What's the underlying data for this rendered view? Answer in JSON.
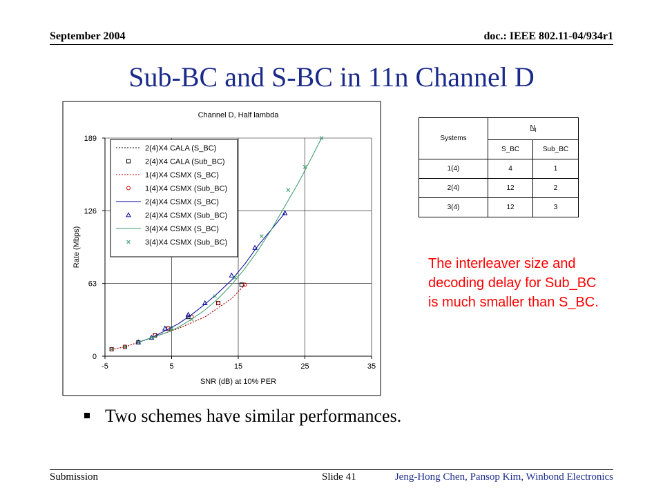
{
  "header": {
    "date": "September 2004",
    "doc": "doc.: IEEE 802.11-04/934r1"
  },
  "title": "Sub-BC and S-BC in 11n Channel D",
  "chart_data": {
    "type": "line",
    "title": "Channel D, Half lambda",
    "xlabel": "SNR (dB) at 10% PER",
    "ylabel": "Rate (Mbps)",
    "xlim": [
      -5,
      35
    ],
    "ylim": [
      0,
      189
    ],
    "xticks": [
      "-5",
      "5",
      "15",
      "25",
      "35"
    ],
    "yticks": [
      "0",
      "63",
      "126",
      "189"
    ],
    "legend_position": "top-left",
    "series": [
      {
        "name": "2(4)X4 CALA (S_BC)",
        "color": "#000000",
        "style": "dotted",
        "marker": "none",
        "x": [
          -4,
          -2,
          0,
          2,
          4,
          6,
          8,
          10,
          12,
          14,
          16
        ],
        "y": [
          6,
          8,
          12,
          16,
          20,
          24,
          29,
          34,
          42,
          50,
          62
        ]
      },
      {
        "name": "2(4)X4 CALA (Sub_BC)",
        "color": "#000000",
        "style": "none",
        "marker": "square",
        "x": [
          -4,
          -2,
          0,
          2.5,
          4.5,
          7.5,
          12,
          15.5
        ],
        "y": [
          6,
          8,
          12,
          18,
          24,
          34,
          46,
          62
        ]
      },
      {
        "name": "1(4)X4 CSMX (S_BC)",
        "color": "#cc0000",
        "style": "dotted",
        "marker": "none",
        "x": [
          -4,
          -2,
          0,
          2,
          4,
          6,
          8,
          10,
          12,
          14,
          16
        ],
        "y": [
          6,
          8,
          12,
          16,
          20,
          24,
          29,
          34,
          42,
          50,
          62
        ]
      },
      {
        "name": "1(4)X4 CSMX (Sub_BC)",
        "color": "#cc0000",
        "style": "none",
        "marker": "circle",
        "x": [
          -4,
          -2,
          0,
          2.5,
          4.5,
          8,
          12,
          16
        ],
        "y": [
          6,
          8,
          12,
          18,
          24,
          34,
          46,
          62
        ]
      },
      {
        "name": "2(4)X4 CSMX (S_BC)",
        "color": "#000099",
        "style": "solid",
        "marker": "none",
        "x": [
          0,
          2,
          4,
          6,
          8,
          10,
          12,
          14,
          16,
          18,
          20,
          22
        ],
        "y": [
          12,
          16,
          22,
          28,
          36,
          45,
          55,
          66,
          80,
          96,
          110,
          124
        ]
      },
      {
        "name": "2(4)X4 CSMX (Sub_BC)",
        "color": "#000099",
        "style": "none",
        "marker": "triangle",
        "x": [
          0,
          2,
          4,
          7.5,
          10,
          14,
          17.5,
          22
        ],
        "y": [
          12,
          16,
          24,
          36,
          46,
          70,
          94,
          124
        ]
      },
      {
        "name": "3(4)X4 CSMX (S_BC)",
        "color": "#339966",
        "style": "solid",
        "marker": "none",
        "x": [
          0,
          2,
          4,
          6,
          8,
          10,
          12,
          14,
          16,
          18,
          20,
          22,
          24,
          26,
          27.5
        ],
        "y": [
          12,
          16,
          20,
          25,
          32,
          40,
          50,
          62,
          76,
          92,
          110,
          130,
          150,
          172,
          189
        ]
      },
      {
        "name": "3(4)X4 CSMX (Sub_BC)",
        "color": "#339966",
        "style": "none",
        "marker": "x",
        "x": [
          -4,
          -2,
          0,
          2,
          5,
          8,
          11.5,
          14.5,
          18.5,
          22.5,
          25,
          27.5
        ],
        "y": [
          6,
          8,
          12,
          16,
          24,
          32,
          52,
          68,
          104,
          144,
          164,
          189
        ]
      }
    ]
  },
  "table": {
    "header_systems": "Systems",
    "header_nl": "N",
    "header_nl_sub": "l",
    "sub_headers": [
      "S_BC",
      "Sub_BC"
    ],
    "rows": [
      [
        "1(4)",
        "4",
        "1"
      ],
      [
        "2(4)",
        "12",
        "2"
      ],
      [
        "3(4)",
        "12",
        "3"
      ]
    ]
  },
  "note": "The interleaver size and decoding delay for Sub_BC is much smaller than S_BC.",
  "bullet": "Two schemes have similar performances.",
  "footer": {
    "left": "Submission",
    "slide": "Slide 41",
    "authors": "Jeng-Hong Chen, Pansop Kim, Winbond Electronics"
  }
}
